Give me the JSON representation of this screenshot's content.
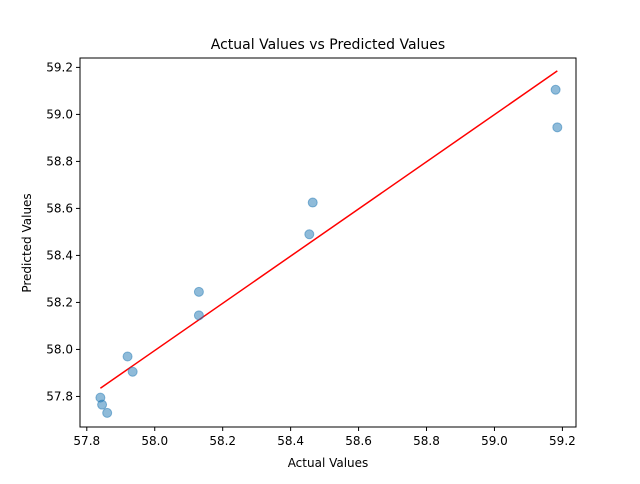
{
  "chart_data": {
    "type": "scatter",
    "title": "Actual Values vs Predicted Values",
    "xlabel": "Actual Values",
    "ylabel": "Predicted Values",
    "xlim": [
      57.78,
      59.24
    ],
    "ylim": [
      57.67,
      59.24
    ],
    "xticks": [
      57.8,
      58.0,
      58.2,
      58.4,
      58.6,
      58.8,
      59.0,
      59.2
    ],
    "yticks": [
      57.8,
      58.0,
      58.2,
      58.4,
      58.6,
      58.8,
      59.0,
      59.2
    ],
    "grid": false,
    "points": [
      {
        "x": 57.84,
        "y": 57.795
      },
      {
        "x": 57.845,
        "y": 57.765
      },
      {
        "x": 57.86,
        "y": 57.73
      },
      {
        "x": 57.92,
        "y": 57.97
      },
      {
        "x": 57.935,
        "y": 57.905
      },
      {
        "x": 58.13,
        "y": 58.245
      },
      {
        "x": 58.13,
        "y": 58.145
      },
      {
        "x": 58.455,
        "y": 58.49
      },
      {
        "x": 58.465,
        "y": 58.625
      },
      {
        "x": 59.18,
        "y": 59.105
      },
      {
        "x": 59.185,
        "y": 58.945
      }
    ],
    "fit_line": {
      "x": [
        57.84,
        59.185
      ],
      "y": [
        57.835,
        59.185
      ]
    },
    "colors": {
      "points": "#1f77b4",
      "line": "#ff0000",
      "axes": "#000000"
    }
  }
}
